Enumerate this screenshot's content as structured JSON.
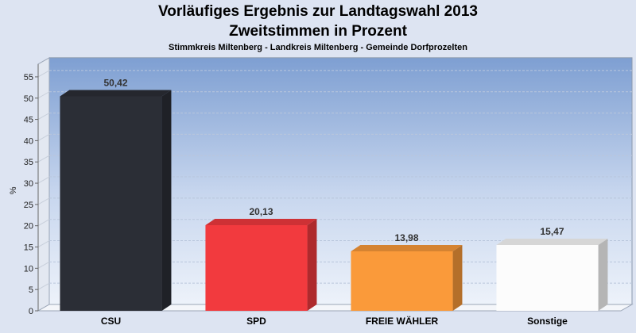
{
  "chart_data": {
    "type": "bar",
    "title": [
      "Vorläufiges Ergebnis zur Landtagswahl 2013",
      "Zweitstimmen in Prozent"
    ],
    "subtitle": "Stimmkreis Miltenberg - Landkreis Miltenberg - Gemeinde Dorfprozelten",
    "categories": [
      "CSU",
      "SPD",
      "FREIE WÄHLER",
      "Sonstige"
    ],
    "values": [
      50.42,
      20.13,
      13.98,
      15.47
    ],
    "value_labels": [
      "50,42",
      "20,13",
      "13,98",
      "15,47"
    ],
    "colors": [
      "#2b2e36",
      "#f23a3e",
      "#fa9a3a",
      "#fcfcfc"
    ],
    "ylabel": "%",
    "xlabel": "",
    "ylim": [
      0,
      58
    ],
    "yticks": [
      0,
      5,
      10,
      15,
      20,
      25,
      30,
      35,
      40,
      45,
      50,
      55
    ],
    "grid": true
  }
}
